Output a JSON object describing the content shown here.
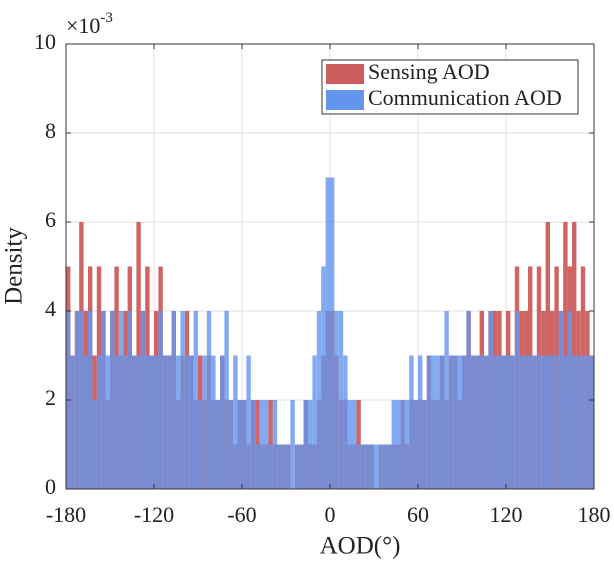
{
  "chart_data": {
    "type": "histogram",
    "xlabel": "AOD(°)",
    "ylabel": "Density",
    "y_multiplier": {
      "base": "×10",
      "exponent": "-3"
    },
    "bins": [
      -180,
      -177,
      -174,
      -171,
      -168,
      -165,
      -162,
      -159,
      -156,
      -153,
      -150,
      -147,
      -144,
      -141,
      -138,
      -135,
      -132,
      -129,
      -126,
      -123,
      -120,
      -117,
      -114,
      -111,
      -108,
      -105,
      -102,
      -99,
      -96,
      -93,
      -90,
      -87,
      -84,
      -81,
      -78,
      -75,
      -72,
      -69,
      -66,
      -63,
      -60,
      -57,
      -54,
      -51,
      -48,
      -45,
      -42,
      -39,
      -36,
      -33,
      -30,
      -27,
      -24,
      -21,
      -18,
      -15,
      -12,
      -9,
      -6,
      -3,
      0,
      3,
      6,
      9,
      12,
      15,
      18,
      21,
      24,
      27,
      30,
      33,
      36,
      39,
      42,
      45,
      48,
      51,
      54,
      57,
      60,
      63,
      66,
      69,
      72,
      75,
      78,
      81,
      84,
      87,
      90,
      93,
      96,
      99,
      102,
      105,
      108,
      111,
      114,
      117,
      120,
      123,
      126,
      129,
      132,
      135,
      138,
      141,
      144,
      147,
      150,
      153,
      156,
      159,
      162,
      165,
      168,
      171,
      174,
      177,
      180
    ],
    "series": [
      {
        "name": "Sensing AOD",
        "color": "#cd5c5c",
        "values": [
          5,
          3,
          4,
          6,
          4,
          5,
          3,
          5,
          4,
          2,
          4,
          5,
          3,
          4,
          5,
          3,
          6,
          4,
          5,
          3,
          4,
          5,
          3,
          3,
          4,
          2,
          3,
          4,
          3,
          2,
          3,
          2,
          3,
          2,
          2,
          3,
          2,
          2,
          1,
          2,
          2,
          1,
          2,
          2,
          1,
          1,
          2,
          1,
          1,
          1,
          1,
          0,
          1,
          1,
          2,
          1,
          1,
          2,
          3,
          4,
          4,
          3,
          2,
          2,
          1,
          1,
          2,
          1,
          1,
          1,
          0,
          1,
          1,
          1,
          1,
          1,
          2,
          1,
          2,
          2,
          2,
          2,
          3,
          2,
          2,
          3,
          2,
          3,
          3,
          2,
          3,
          4,
          3,
          3,
          4,
          3,
          4,
          4,
          4,
          3,
          4,
          3,
          5,
          4,
          4,
          5,
          3,
          5,
          4,
          6,
          4,
          5,
          4,
          6,
          5,
          6,
          4,
          5,
          4,
          3
        ]
      },
      {
        "name": "Communication AOD",
        "color": "#6495ed",
        "values": [
          4,
          3,
          4,
          4,
          3,
          4,
          2,
          3,
          4,
          3,
          4,
          3,
          4,
          3,
          4,
          3,
          3,
          4,
          3,
          3,
          3,
          4,
          3,
          3,
          4,
          3,
          4,
          3,
          3,
          4,
          2,
          3,
          4,
          3,
          2,
          3,
          4,
          2,
          3,
          2,
          2,
          3,
          2,
          1,
          2,
          2,
          1,
          2,
          1,
          1,
          1,
          2,
          1,
          1,
          2,
          2,
          3,
          4,
          5,
          7,
          7,
          4,
          4,
          3,
          2,
          2,
          1,
          1,
          1,
          1,
          1,
          1,
          1,
          1,
          2,
          2,
          2,
          2,
          3,
          2,
          3,
          2,
          3,
          3,
          3,
          3,
          4,
          3,
          3,
          3,
          3,
          4,
          3,
          3,
          3,
          3,
          4,
          3,
          3,
          3,
          3,
          3,
          4,
          3,
          3,
          3,
          3,
          3,
          3,
          3,
          3,
          3,
          4,
          3,
          4,
          3,
          3,
          3,
          3,
          3
        ]
      }
    ],
    "xlim": [
      -180,
      180
    ],
    "xticks": [
      -180,
      -120,
      -60,
      0,
      60,
      120,
      180
    ],
    "ylim": [
      0,
      10
    ],
    "yticks": [
      0,
      2,
      4,
      6,
      8,
      10
    ],
    "grid": true,
    "legend": "upper right"
  }
}
